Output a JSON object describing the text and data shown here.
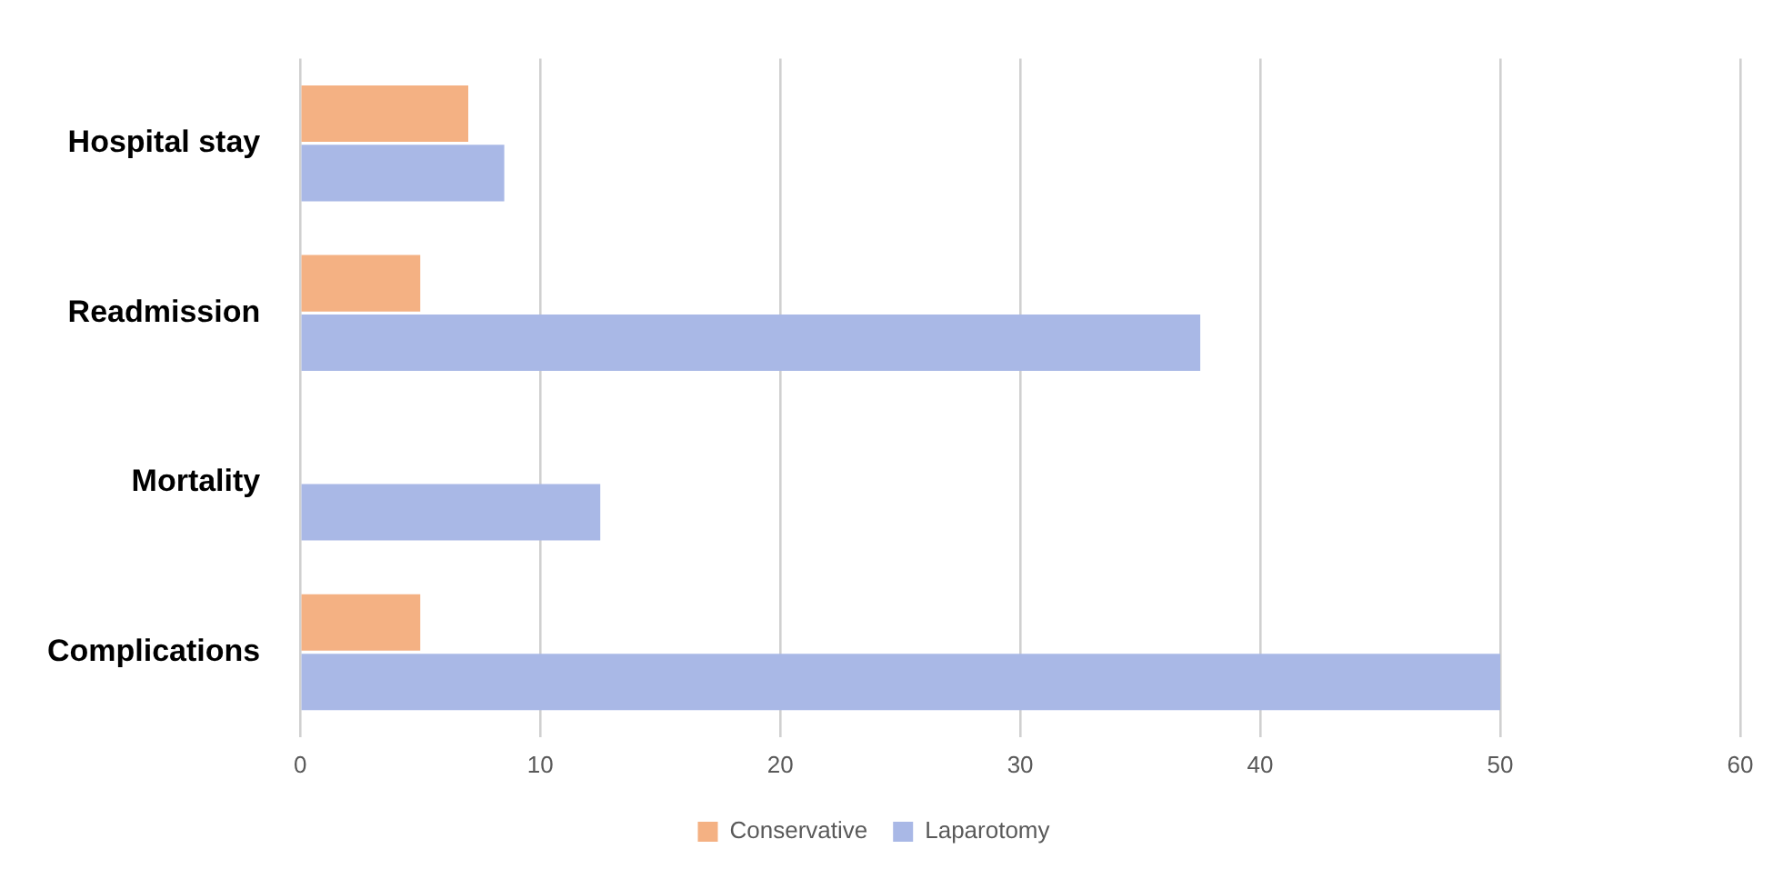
{
  "chart_data": {
    "type": "bar",
    "orientation": "horizontal",
    "categories": [
      "Hospital stay",
      "Readmission",
      "Mortality",
      "Complications"
    ],
    "series": [
      {
        "name": "Conservative",
        "color": "#f4b183",
        "values": [
          7,
          5,
          0,
          5
        ]
      },
      {
        "name": "Laparotomy",
        "color": "#a9b8e6",
        "values": [
          8.5,
          37.5,
          12.5,
          50
        ]
      }
    ],
    "xlim": [
      0,
      60
    ],
    "xticks": [
      0,
      10,
      20,
      30,
      40,
      50,
      60
    ],
    "grid": "x",
    "legend": "bottom"
  }
}
